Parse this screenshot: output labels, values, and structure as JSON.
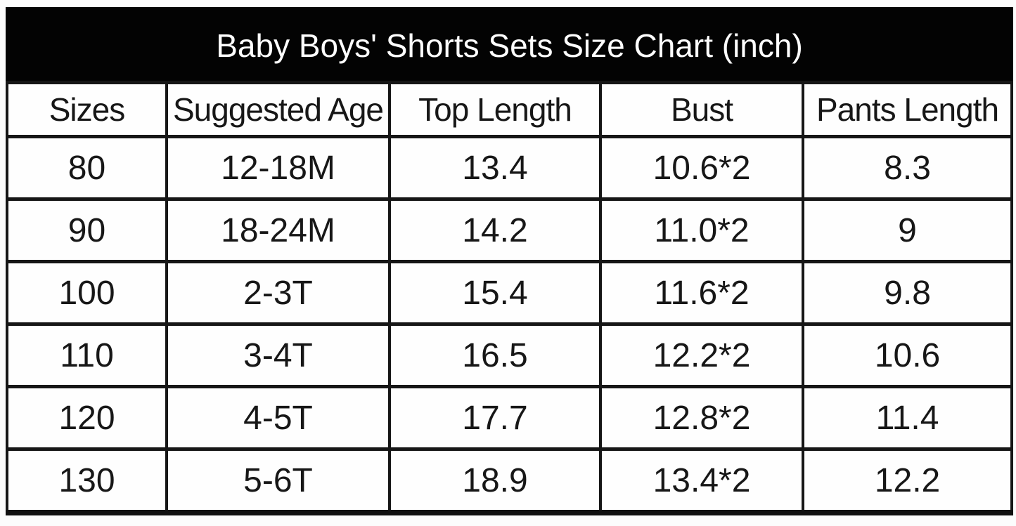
{
  "colors": {
    "banner_background": "#030303",
    "banner_text": "#ffffff",
    "grid_border": "#161616",
    "cell_background": "#fefefe",
    "cell_text": "#171717"
  },
  "chart_data": {
    "type": "table",
    "title": "Baby Boys' Shorts Sets Size Chart (inch)",
    "unit": "inch",
    "columns": [
      "Sizes",
      "Suggested Age",
      "Top Length",
      "Bust",
      "Pants Length"
    ],
    "rows": [
      [
        "80",
        "12-18M",
        "13.4",
        "10.6*2",
        "8.3"
      ],
      [
        "90",
        "18-24M",
        "14.2",
        "11.0*2",
        "9"
      ],
      [
        "100",
        "2-3T",
        "15.4",
        "11.6*2",
        "9.8"
      ],
      [
        "110",
        "3-4T",
        "16.5",
        "12.2*2",
        "10.6"
      ],
      [
        "120",
        "4-5T",
        "17.7",
        "12.8*2",
        "11.4"
      ],
      [
        "130",
        "5-6T",
        "18.9",
        "13.4*2",
        "12.2"
      ]
    ]
  }
}
